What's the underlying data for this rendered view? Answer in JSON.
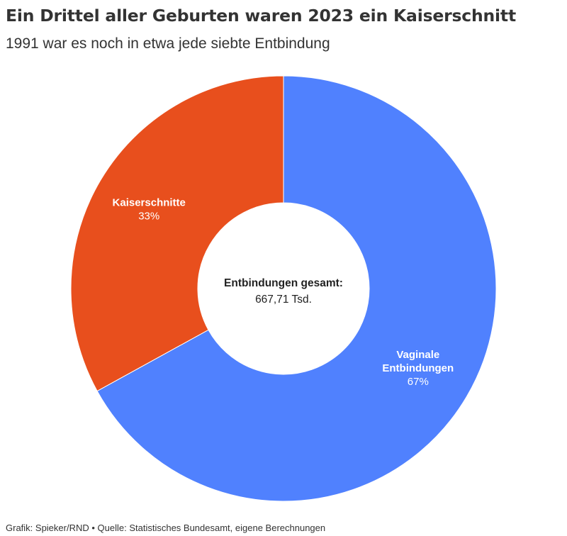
{
  "header": {
    "title": "Ein Drittel aller Geburten waren 2023 ein Kaiserschnitt",
    "subtitle": "1991 war es noch in etwa jede siebte Entbindung"
  },
  "chart_data": {
    "type": "pie",
    "donut": true,
    "slices": [
      {
        "name_lines": [
          "Vaginale",
          "Entbindungen"
        ],
        "value": 67,
        "label": "67%",
        "color": "#5081fe"
      },
      {
        "name_lines": [
          "Kaiserschnitte"
        ],
        "value": 33,
        "label": "33%",
        "color": "#e84f1d"
      }
    ],
    "center_label": {
      "title": "Entbindungen gesamt:",
      "value": "667,71 Tsd."
    }
  },
  "footer": {
    "text": "Grafik: Spieker/RND • Quelle: Statistisches Bundesamt, eigene Berechnungen"
  }
}
